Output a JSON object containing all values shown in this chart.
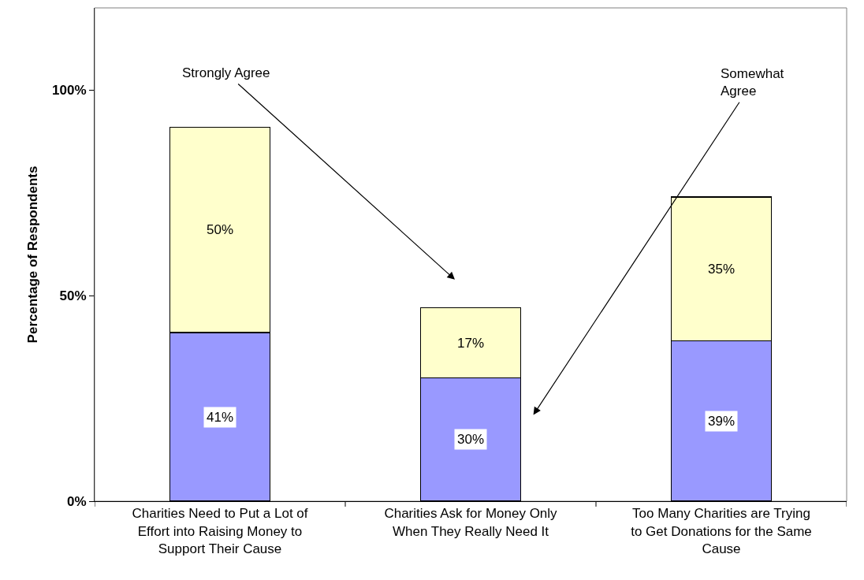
{
  "chart_data": {
    "type": "bar",
    "stacked": true,
    "ylabel": "Percentage of Respondents",
    "categories": [
      "Charities Need to Put a Lot of Effort into Raising Money to Support Their Cause",
      "Charities Ask for Money Only When They Really Need It",
      "Too Many Charities are Trying to Get Donations for the Same Cause"
    ],
    "series": [
      {
        "color": "#9999ff",
        "values": [
          41,
          30,
          39
        ],
        "value_labels": [
          "41%",
          "30%",
          "39%"
        ]
      },
      {
        "color": "#ffffcc",
        "values": [
          50,
          17,
          35
        ],
        "value_labels": [
          "50%",
          "17%",
          "35%"
        ]
      }
    ],
    "ylim": [
      0,
      120
    ],
    "yticks": [
      {
        "value": 0,
        "label": "0%"
      },
      {
        "value": 50,
        "label": "50%"
      },
      {
        "value": 100,
        "label": "100%"
      }
    ],
    "annotations": [
      "Strongly Agree",
      "Somewhat Agree"
    ]
  }
}
